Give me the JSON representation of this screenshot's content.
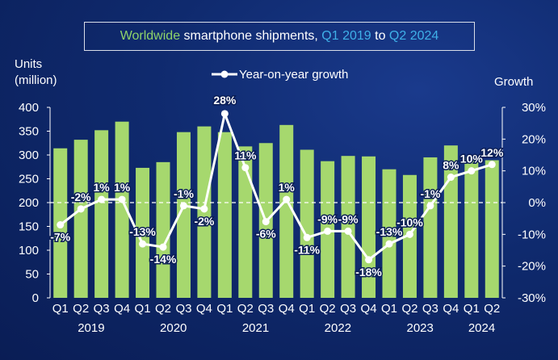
{
  "title": {
    "part1": "Worldwide",
    "part2": " smartphone shipments, ",
    "part3": "Q1 2019",
    "part4": " to ",
    "part5": "Q2 2024"
  },
  "y_left_label_line1": "Units",
  "y_left_label_line2": "(million)",
  "y_right_label": "Growth",
  "colors": {
    "bar": "#a6d86e",
    "line": "#ffffff",
    "text": "#ffffff",
    "title_green": "#8fd36a",
    "title_blue": "#3fb0e8",
    "background": "#0f2a6e"
  },
  "chart_data": {
    "type": "bar",
    "categories": [
      "Q1",
      "Q2",
      "Q3",
      "Q4",
      "Q1",
      "Q2",
      "Q3",
      "Q4",
      "Q1",
      "Q2",
      "Q3",
      "Q4",
      "Q1",
      "Q2",
      "Q3",
      "Q4",
      "Q1",
      "Q2",
      "Q3",
      "Q4",
      "Q1",
      "Q2"
    ],
    "year_groups": [
      {
        "label": "2019",
        "start": 0,
        "end": 3
      },
      {
        "label": "2020",
        "start": 4,
        "end": 7
      },
      {
        "label": "2021",
        "start": 8,
        "end": 11
      },
      {
        "label": "2022",
        "start": 12,
        "end": 15
      },
      {
        "label": "2023",
        "start": 16,
        "end": 19
      },
      {
        "label": "2024",
        "start": 20,
        "end": 21
      }
    ],
    "series": [
      {
        "type": "bar",
        "axis": "left",
        "values": [
          314,
          332,
          352,
          370,
          273,
          285,
          348,
          360,
          348,
          318,
          325,
          363,
          311,
          287,
          298,
          297,
          270,
          258,
          295,
          320,
          296,
          289
        ]
      },
      {
        "name": "Year-on-year growth",
        "type": "line",
        "axis": "right",
        "values": [
          -7,
          -2,
          1,
          1,
          -13,
          -14,
          -1,
          -2,
          28,
          11,
          -6,
          1,
          -11,
          -9,
          -9,
          -18,
          -13,
          -10,
          -1,
          8,
          10,
          12
        ],
        "labels": [
          "-7%",
          "-2%",
          "1%",
          "1%",
          "-13%",
          "-14%",
          "-1%",
          "-2%",
          "28%",
          "11%",
          "-6%",
          "1%",
          "-11%",
          "-9%",
          "-9%",
          "-18%",
          "-13%",
          "-10%",
          "-1%",
          "8%",
          "10%",
          "12%"
        ]
      }
    ],
    "y_left": {
      "min": 0,
      "max": 400,
      "ticks": [
        "0",
        "50",
        "100",
        "150",
        "200",
        "250",
        "300",
        "350",
        "400"
      ]
    },
    "y_right": {
      "min": -30,
      "max": 30,
      "ticks": [
        "-30%",
        "-20%",
        "-10%",
        "0%",
        "10%",
        "20%",
        "30%"
      ]
    },
    "zero_growth_reference": "dashed line",
    "legend_position": "top-center",
    "grid": false
  }
}
